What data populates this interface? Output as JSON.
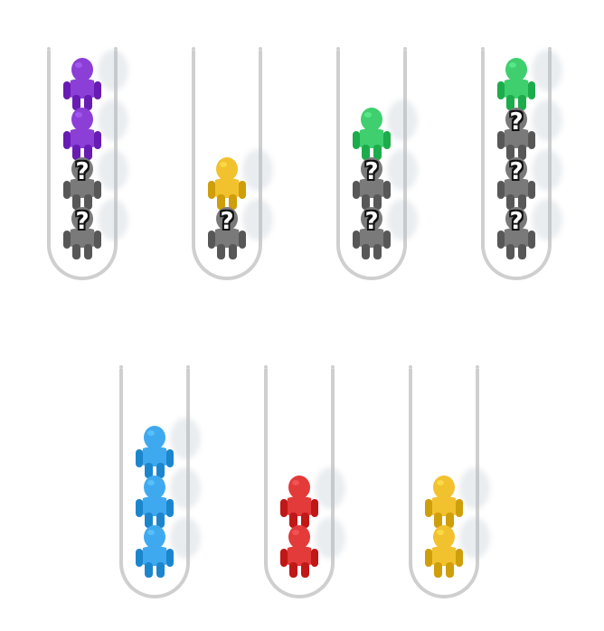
{
  "board": {
    "tubes": [
      {
        "id": "tube-1",
        "figures": [
          "hidden",
          "hidden",
          "purple",
          "purple"
        ]
      },
      {
        "id": "tube-2",
        "figures": [
          "hidden",
          "yellow"
        ]
      },
      {
        "id": "tube-3",
        "figures": [
          "hidden",
          "hidden",
          "green"
        ]
      },
      {
        "id": "tube-4",
        "figures": [
          "hidden",
          "hidden",
          "hidden",
          "green"
        ]
      },
      {
        "id": "tube-5",
        "figures": [
          "blue",
          "blue",
          "blue"
        ]
      },
      {
        "id": "tube-6",
        "figures": [
          "red",
          "red"
        ]
      },
      {
        "id": "tube-7",
        "figures": [
          "yellow",
          "yellow"
        ]
      }
    ],
    "hidden_mark": "?"
  },
  "colors": {
    "purple": "#8b3fd6",
    "yellow": "#f2c12e",
    "green": "#3fcf6e",
    "blue": "#3fa9f0",
    "red": "#e33a3a",
    "hidden": "#7a7a7a",
    "tube_border": "#cfcfcf"
  }
}
